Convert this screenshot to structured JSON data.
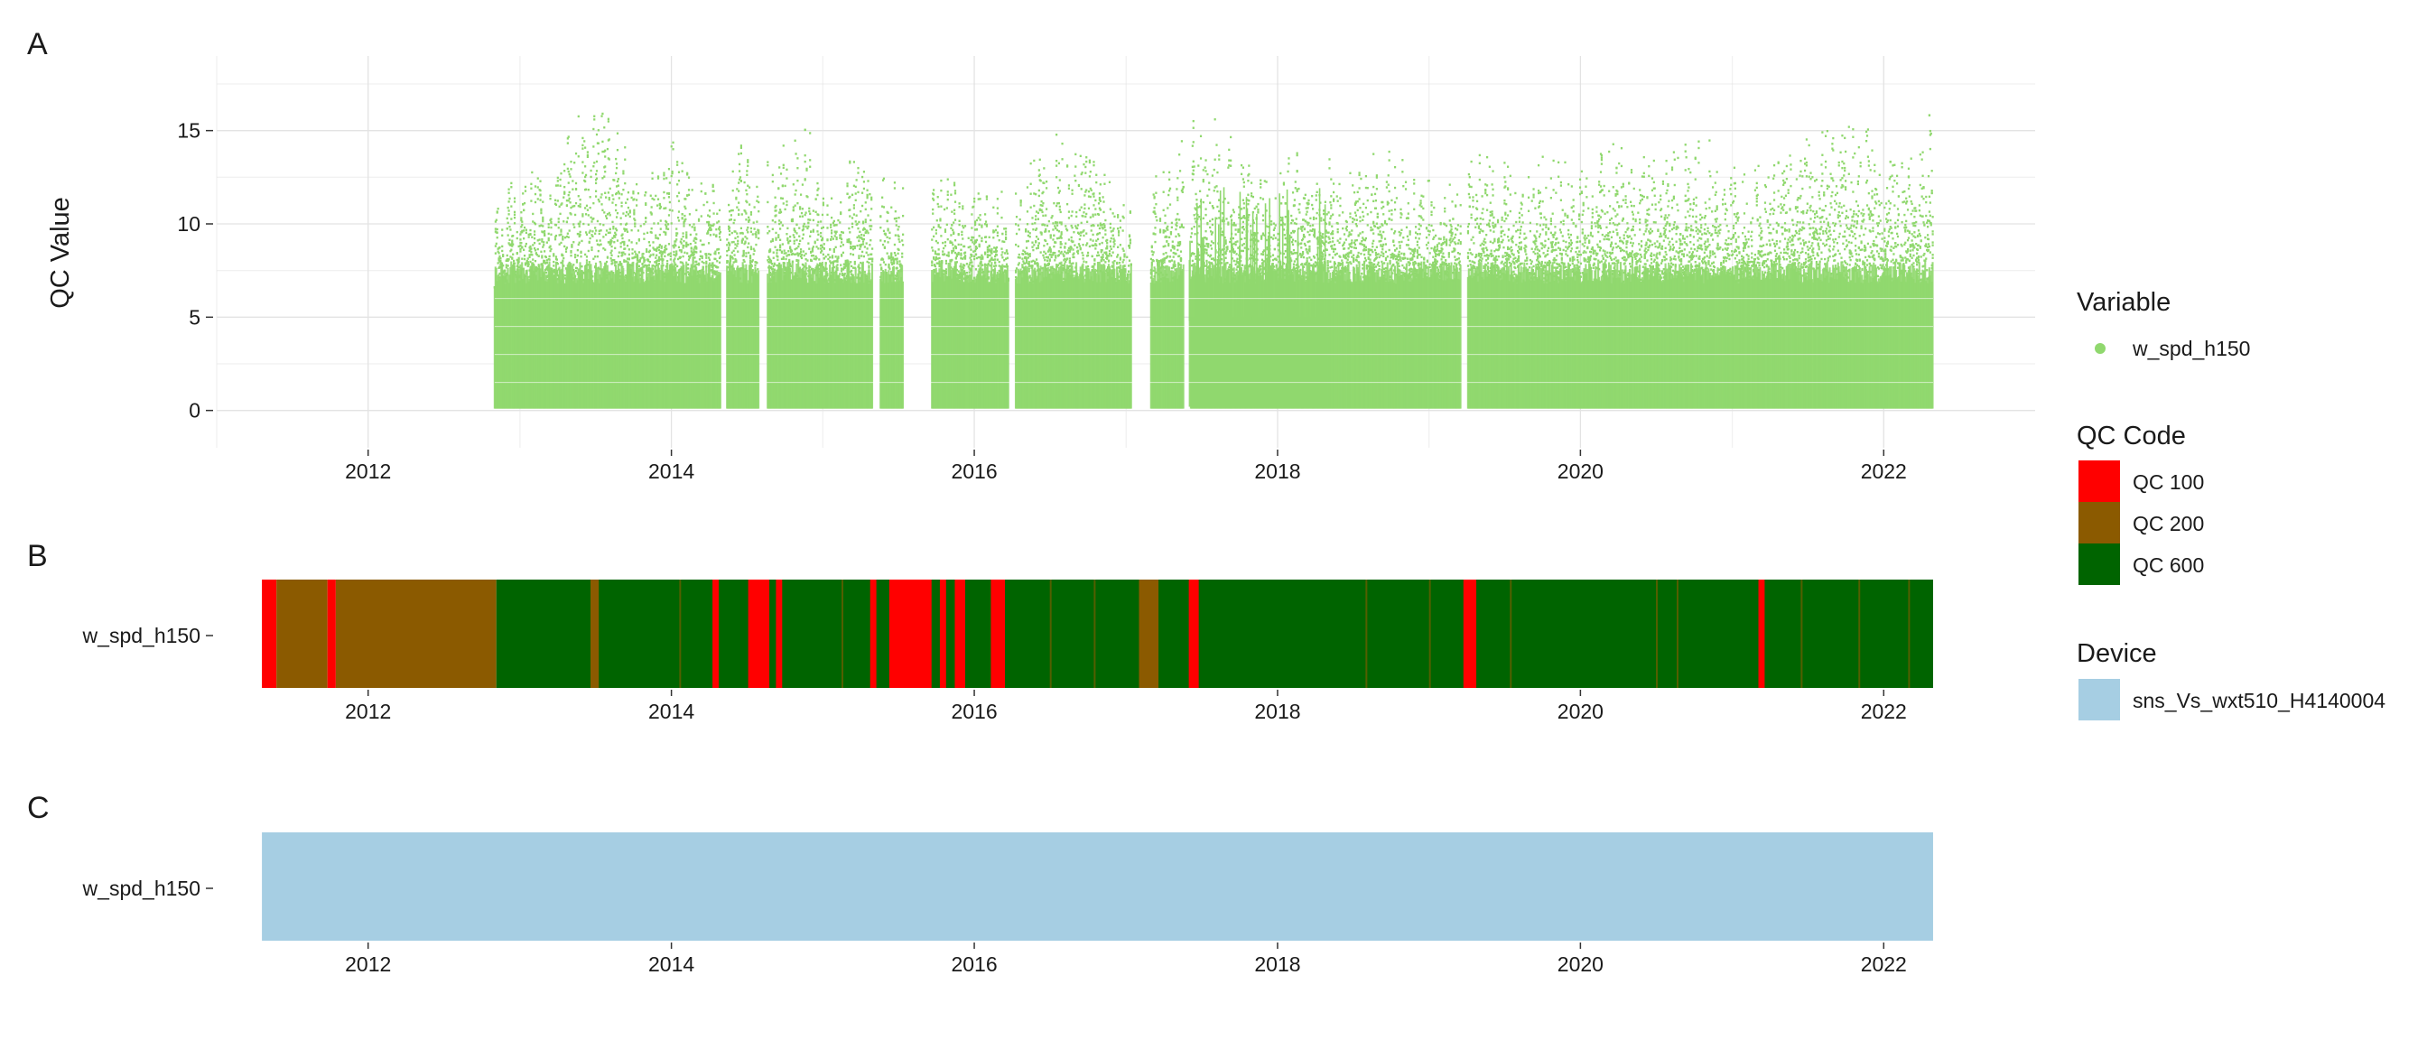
{
  "chart_data": [
    {
      "panel": "A",
      "type": "scatter",
      "ylabel": "QC Value",
      "xlim": [
        "2011-01-01",
        "2023-01-01"
      ],
      "ylim": [
        -2,
        19
      ],
      "x_ticks": [
        "2012",
        "2014",
        "2016",
        "2018",
        "2020",
        "2022"
      ],
      "y_ticks": [
        0,
        5,
        10,
        15
      ],
      "grid": true,
      "series": [
        {
          "name": "w_spd_h150",
          "color": "#90D86E",
          "x_range": [
            "2012-11-01",
            "2022-04-30"
          ],
          "gaps": [
            [
              "2014-05-01",
              "2014-05-15"
            ],
            [
              "2014-08-01",
              "2014-08-20"
            ],
            [
              "2015-05-01",
              "2015-05-20"
            ],
            [
              "2015-07-15",
              "2015-09-20"
            ],
            [
              "2016-03-25",
              "2016-04-10"
            ],
            [
              "2017-01-15",
              "2017-03-01"
            ],
            [
              "2017-05-20",
              "2017-06-05"
            ],
            [
              "2019-03-20",
              "2019-04-05"
            ]
          ],
          "monthly_max": [
            [
              "2012-11",
              12.0
            ],
            [
              "2013-01",
              13.5
            ],
            [
              "2013-03",
              13.0
            ],
            [
              "2013-05",
              16.8
            ],
            [
              "2013-07",
              17.9
            ],
            [
              "2013-09",
              14.5
            ],
            [
              "2013-11",
              13.0
            ],
            [
              "2014-01",
              16.0
            ],
            [
              "2014-03",
              13.0
            ],
            [
              "2014-06",
              15.3
            ],
            [
              "2014-09",
              14.0
            ],
            [
              "2014-11",
              16.8
            ],
            [
              "2015-01",
              12.0
            ],
            [
              "2015-03",
              14.3
            ],
            [
              "2015-06",
              12.5
            ],
            [
              "2015-10",
              13.0
            ],
            [
              "2016-01",
              12.5
            ],
            [
              "2016-04",
              12.0
            ],
            [
              "2016-06",
              15.8
            ],
            [
              "2016-09",
              15.0
            ],
            [
              "2016-12",
              12.0
            ],
            [
              "2017-04",
              14.0
            ],
            [
              "2017-06",
              16.6
            ],
            [
              "2017-09",
              15.0
            ],
            [
              "2017-12",
              13.0
            ],
            [
              "2018-03",
              15.6
            ],
            [
              "2018-06",
              13.0
            ],
            [
              "2018-09",
              15.0
            ],
            [
              "2018-12",
              13.0
            ],
            [
              "2019-05",
              14.5
            ],
            [
              "2019-08",
              13.5
            ],
            [
              "2019-11",
              14.0
            ],
            [
              "2020-01",
              13.0
            ],
            [
              "2020-03",
              15.3
            ],
            [
              "2020-06",
              14.0
            ],
            [
              "2020-10",
              15.0
            ],
            [
              "2021-01",
              13.5
            ],
            [
              "2021-04",
              14.5
            ],
            [
              "2021-07",
              15.5
            ],
            [
              "2021-09",
              16.7
            ],
            [
              "2021-11",
              16.7
            ],
            [
              "2022-02",
              14.0
            ],
            [
              "2022-04",
              16.6
            ]
          ],
          "dense_cluster": {
            "x_range": [
              "2017-06-01",
              "2018-04-30"
            ],
            "y_range": [
              0.2,
              5.0
            ]
          }
        }
      ]
    },
    {
      "panel": "B",
      "type": "heatmap",
      "row": "w_spd_h150",
      "xlim": [
        "2011-01-01",
        "2023-01-01"
      ],
      "x_ticks": [
        "2012",
        "2014",
        "2016",
        "2018",
        "2020",
        "2022"
      ],
      "legend_title": "QC Code",
      "segments": [
        {
          "start": "2011-04-20",
          "end": "2011-05-25",
          "code": "QC 100"
        },
        {
          "start": "2011-05-25",
          "end": "2011-09-25",
          "code": "QC 200"
        },
        {
          "start": "2011-09-25",
          "end": "2011-10-15",
          "code": "QC 100"
        },
        {
          "start": "2011-10-15",
          "end": "2012-11-05",
          "code": "QC 200"
        },
        {
          "start": "2012-11-05",
          "end": "2022-04-30",
          "code": "QC 600"
        },
        {
          "start": "2013-06-20",
          "end": "2013-07-10",
          "code": "QC 200"
        },
        {
          "start": "2014-04-10",
          "end": "2014-04-25",
          "code": "QC 100"
        },
        {
          "start": "2014-07-05",
          "end": "2014-08-25",
          "code": "QC 100"
        },
        {
          "start": "2014-09-10",
          "end": "2014-09-25",
          "code": "QC 100"
        },
        {
          "start": "2015-04-25",
          "end": "2015-05-10",
          "code": "QC 100"
        },
        {
          "start": "2015-06-10",
          "end": "2015-09-20",
          "code": "QC 100"
        },
        {
          "start": "2015-10-10",
          "end": "2015-10-25",
          "code": "QC 100"
        },
        {
          "start": "2015-11-15",
          "end": "2015-12-10",
          "code": "QC 100"
        },
        {
          "start": "2016-02-10",
          "end": "2016-03-15",
          "code": "QC 100"
        },
        {
          "start": "2017-02-01",
          "end": "2017-03-20",
          "code": "QC 200"
        },
        {
          "start": "2017-06-01",
          "end": "2017-06-25",
          "code": "QC 100"
        },
        {
          "start": "2019-03-25",
          "end": "2019-04-25",
          "code": "QC 100"
        },
        {
          "start": "2021-03-05",
          "end": "2021-03-20",
          "code": "QC 100"
        }
      ]
    },
    {
      "panel": "C",
      "type": "heatmap",
      "row": "w_spd_h150",
      "xlim": [
        "2011-01-01",
        "2023-01-01"
      ],
      "x_ticks": [
        "2012",
        "2014",
        "2016",
        "2018",
        "2020",
        "2022"
      ],
      "legend_title": "Device",
      "segments": [
        {
          "start": "2011-04-20",
          "end": "2022-04-30",
          "device": "sns_Vs_wxt510_H4140004"
        }
      ]
    }
  ],
  "panels": {
    "a": "A",
    "b": "B",
    "c": "C"
  },
  "legend": {
    "variable": {
      "title": "Variable",
      "items": [
        {
          "label": "w_spd_h150",
          "color": "#90D86E"
        }
      ]
    },
    "qc": {
      "title": "QC Code",
      "items": [
        {
          "label": "QC 100",
          "color": "#FF0000"
        },
        {
          "label": "QC 200",
          "color": "#8B5A00"
        },
        {
          "label": "QC 600",
          "color": "#006400"
        }
      ]
    },
    "device": {
      "title": "Device",
      "items": [
        {
          "label": "sns_Vs_wxt510_H4140004",
          "color": "#A6CEE3"
        }
      ]
    }
  }
}
